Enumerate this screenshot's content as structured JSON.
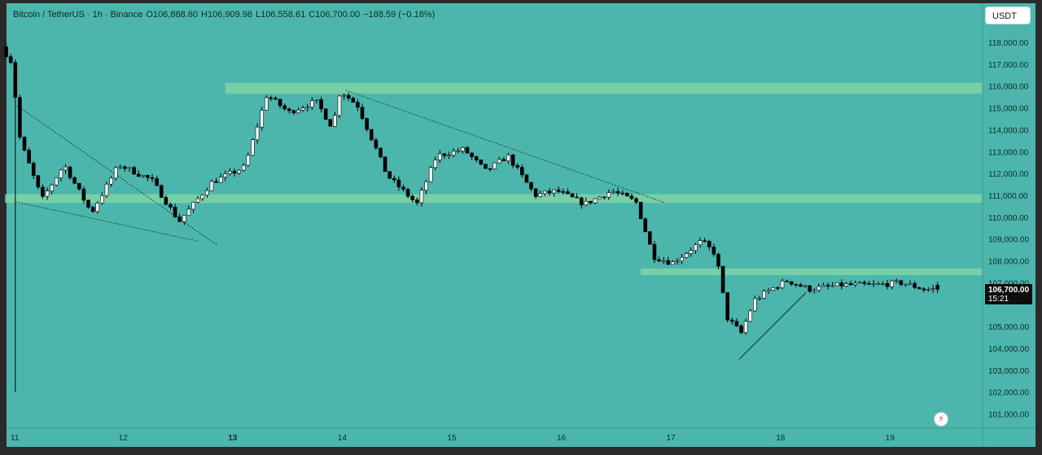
{
  "header": {
    "symbol": "Bitcoin / TetherUS · 1h · Binance",
    "open": "O106,888.60",
    "high": "H106,909.98",
    "low": "L106,558.61",
    "close": "C106,700.00",
    "change": "−188.59 (−0.18%)"
  },
  "currency_button": "USDT",
  "last_price": {
    "label": "106,700.00",
    "countdown": "15:21"
  },
  "colors": {
    "background": "#4cb6ad",
    "zone": "#7fd3a6",
    "up_candle": "#ffffff",
    "down_candle": "#000000",
    "price_tag": "#0d0d0d"
  },
  "chart_data": {
    "type": "candlestick",
    "interval": "1h",
    "ylim": [
      100500,
      119100
    ],
    "y_ticks": [
      {
        "value": 118000,
        "label": "118,000.00"
      },
      {
        "value": 117000,
        "label": "117,000.00"
      },
      {
        "value": 116000,
        "label": "116,000.00"
      },
      {
        "value": 115000,
        "label": "115,000.00"
      },
      {
        "value": 114000,
        "label": "114,000.00"
      },
      {
        "value": 113000,
        "label": "113,000.00"
      },
      {
        "value": 112000,
        "label": "112,000.00"
      },
      {
        "value": 111000,
        "label": "111,000.00"
      },
      {
        "value": 110000,
        "label": "110,000.00"
      },
      {
        "value": 109000,
        "label": "109,000.00"
      },
      {
        "value": 108000,
        "label": "108,000.00"
      },
      {
        "value": 107000,
        "label": "107,000.00"
      },
      {
        "value": 105000,
        "label": "105,000.00"
      },
      {
        "value": 104000,
        "label": "104,000.00"
      },
      {
        "value": 103000,
        "label": "103,000.00"
      },
      {
        "value": 102000,
        "label": "102,000.00"
      },
      {
        "value": 101000,
        "label": "101,000.00"
      }
    ],
    "x_ticks": [
      {
        "day": 11,
        "label": "11",
        "bold": false
      },
      {
        "day": 12,
        "label": "12",
        "bold": false
      },
      {
        "day": 13,
        "label": "13",
        "bold": true
      },
      {
        "day": 14,
        "label": "14",
        "bold": false
      },
      {
        "day": 15,
        "label": "15",
        "bold": false
      },
      {
        "day": 16,
        "label": "16",
        "bold": false
      },
      {
        "day": 17,
        "label": "17",
        "bold": false
      },
      {
        "day": 18,
        "label": "18",
        "bold": false
      },
      {
        "day": 19,
        "label": "19",
        "bold": false
      }
    ],
    "last_price": 106700,
    "zones": [
      {
        "from_day": 12.93,
        "to_day": 19.92,
        "low": 115650,
        "high": 116150
      },
      {
        "from_day": 10.92,
        "to_day": 19.92,
        "low": 110650,
        "high": 111050
      },
      {
        "from_day": 16.72,
        "to_day": 19.92,
        "low": 107350,
        "high": 107650
      }
    ],
    "trendlines": [
      {
        "x": [
          11.03,
          12.86
        ],
        "y": [
          115100,
          108700
        ],
        "style": "dotted"
      },
      {
        "x": [
          11.02,
          12.68
        ],
        "y": [
          110700,
          108900
        ],
        "style": "dotted"
      },
      {
        "x": [
          14.03,
          16.95
        ],
        "y": [
          115800,
          110650
        ],
        "style": "dotted"
      },
      {
        "x": [
          17.62,
          18.23
        ],
        "y": [
          103500,
          106550
        ],
        "style": "solid"
      }
    ],
    "anchors": [
      {
        "day": 10.93,
        "price": 117800
      },
      {
        "day": 11.02,
        "price": 117100
      },
      {
        "day": 11.1,
        "price": 113500
      },
      {
        "day": 11.3,
        "price": 110800
      },
      {
        "day": 11.5,
        "price": 112400
      },
      {
        "day": 11.75,
        "price": 110200
      },
      {
        "day": 12.0,
        "price": 112400
      },
      {
        "day": 12.3,
        "price": 111700
      },
      {
        "day": 12.55,
        "price": 109800
      },
      {
        "day": 12.85,
        "price": 111600
      },
      {
        "day": 13.15,
        "price": 112300
      },
      {
        "day": 13.35,
        "price": 115600
      },
      {
        "day": 13.55,
        "price": 114800
      },
      {
        "day": 13.8,
        "price": 115300
      },
      {
        "day": 13.95,
        "price": 114100
      },
      {
        "day": 14.02,
        "price": 115800
      },
      {
        "day": 14.18,
        "price": 115100
      },
      {
        "day": 14.45,
        "price": 111900
      },
      {
        "day": 14.72,
        "price": 110600
      },
      {
        "day": 14.9,
        "price": 112800
      },
      {
        "day": 15.15,
        "price": 113100
      },
      {
        "day": 15.35,
        "price": 112100
      },
      {
        "day": 15.55,
        "price": 112800
      },
      {
        "day": 15.8,
        "price": 111000
      },
      {
        "day": 16.0,
        "price": 111200
      },
      {
        "day": 16.25,
        "price": 110600
      },
      {
        "day": 16.5,
        "price": 111200
      },
      {
        "day": 16.72,
        "price": 110700
      },
      {
        "day": 16.88,
        "price": 108200
      },
      {
        "day": 17.05,
        "price": 107900
      },
      {
        "day": 17.32,
        "price": 108900
      },
      {
        "day": 17.45,
        "price": 108300
      },
      {
        "day": 17.55,
        "price": 105400
      },
      {
        "day": 17.68,
        "price": 104700
      },
      {
        "day": 17.8,
        "price": 106200
      },
      {
        "day": 17.95,
        "price": 106700
      },
      {
        "day": 18.1,
        "price": 107100
      },
      {
        "day": 18.3,
        "price": 106700
      },
      {
        "day": 18.6,
        "price": 106900
      },
      {
        "day": 18.9,
        "price": 106900
      },
      {
        "day": 19.15,
        "price": 107000
      },
      {
        "day": 19.35,
        "price": 106700
      }
    ]
  }
}
